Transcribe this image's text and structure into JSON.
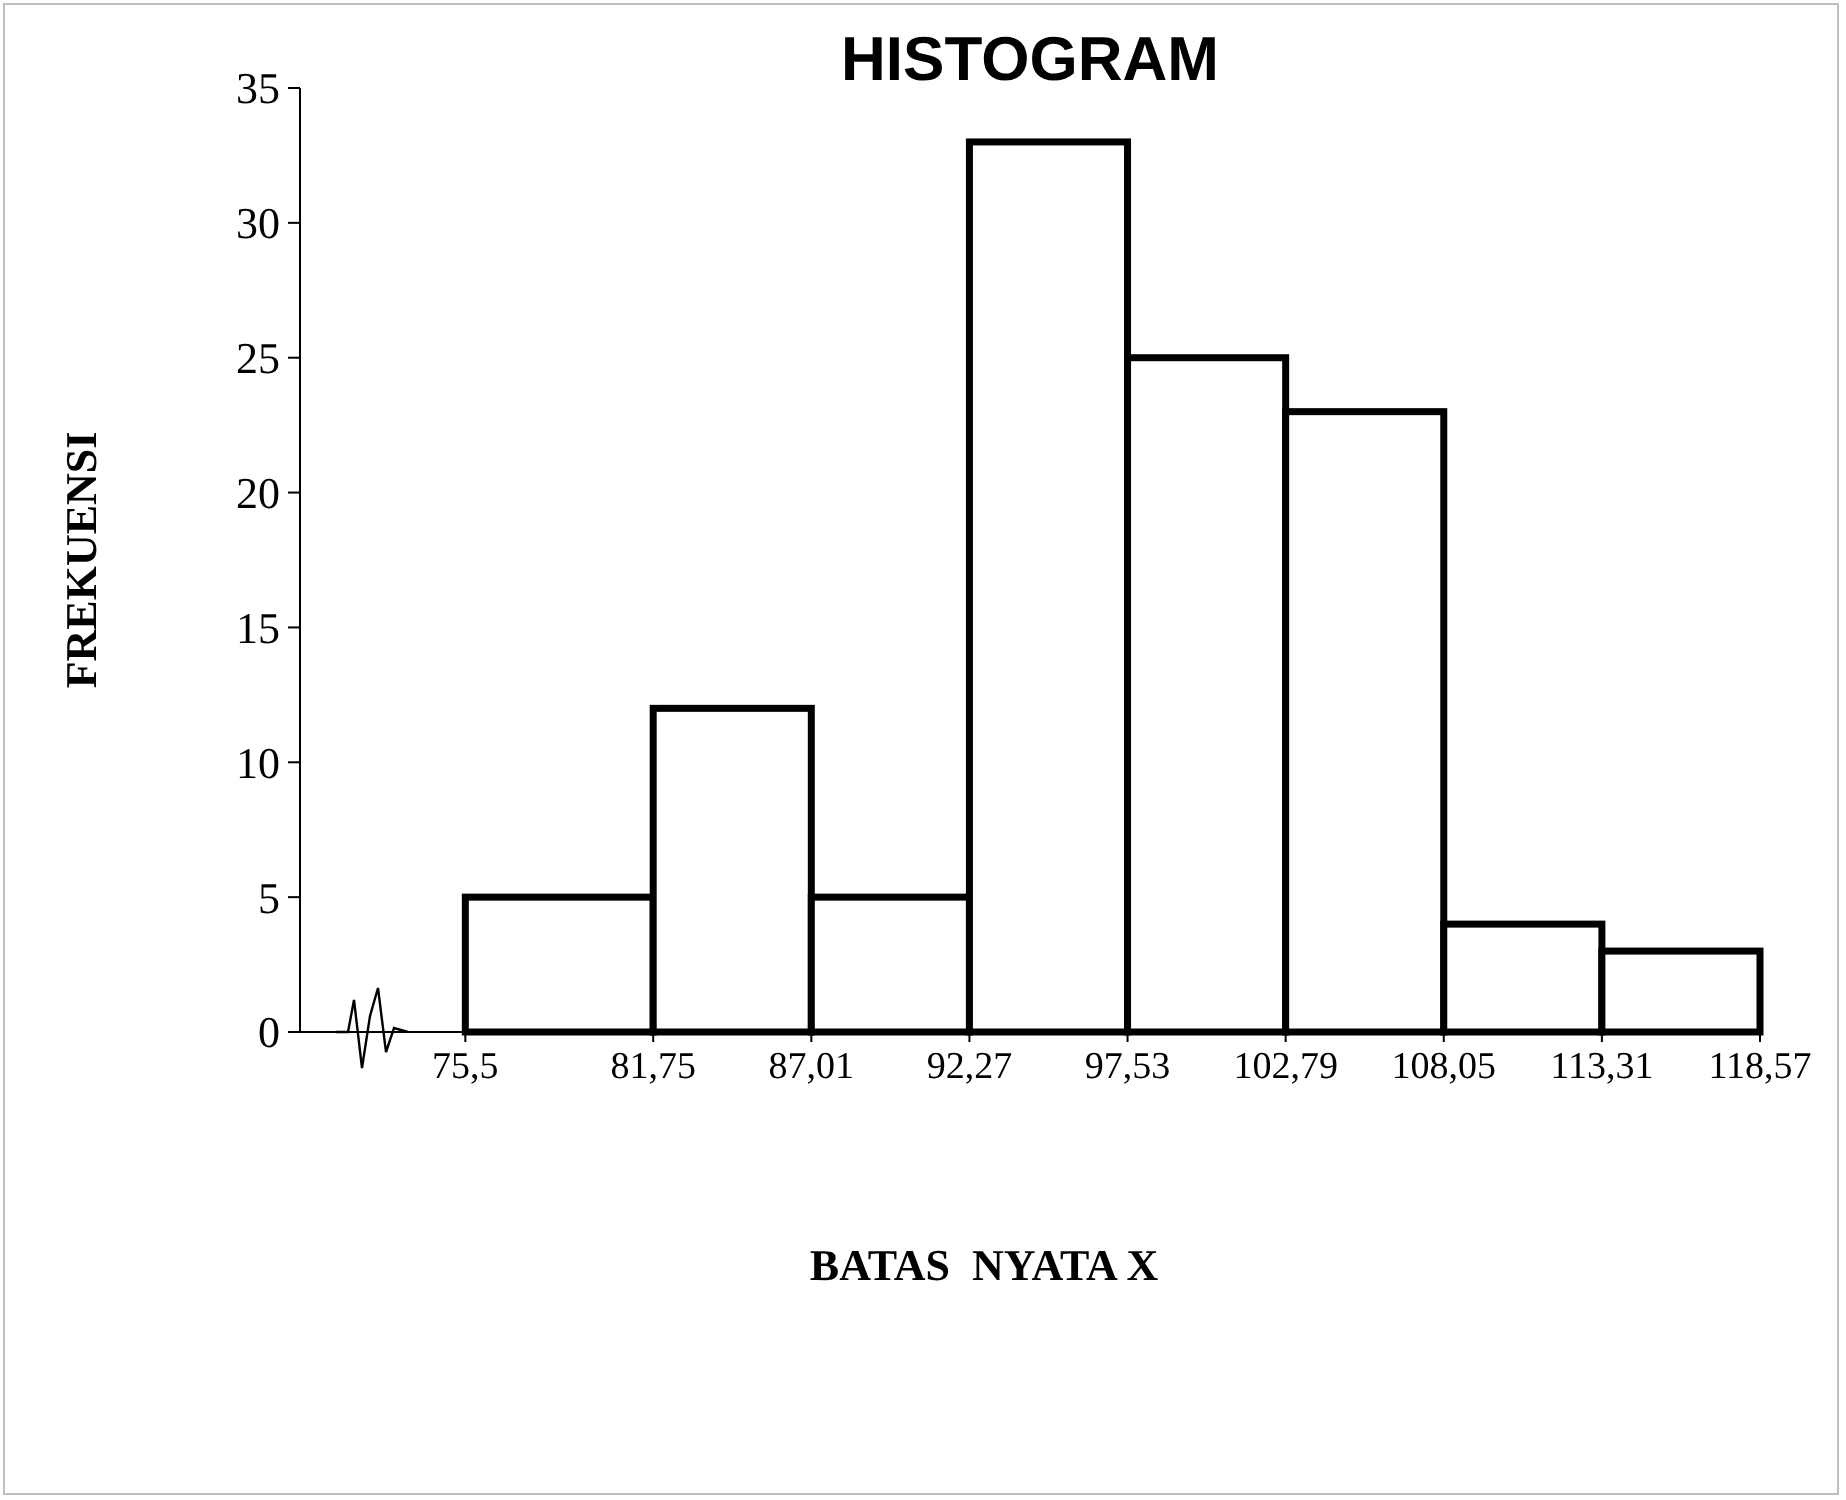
{
  "chart_data": {
    "type": "histogram",
    "title": "HISTOGRAM",
    "xlabel": "BATAS  NYATA X",
    "ylabel": "FREKUENSI",
    "bins": [
      75.5,
      81.75,
      87.01,
      92.27,
      97.53,
      102.79,
      108.05,
      113.31,
      118.57
    ],
    "values": [
      5,
      12,
      5,
      33,
      25,
      23,
      4,
      3
    ],
    "color": "#ffffff",
    "xlim": [
      70,
      118.57
    ],
    "xticks": [
      {
        "value": 75.5,
        "label": "75,5"
      },
      {
        "value": 81.75,
        "label": "81,75"
      },
      {
        "value": 87.01,
        "label": "87,01"
      },
      {
        "value": 92.27,
        "label": "92,27"
      },
      {
        "value": 97.53,
        "label": "97,53"
      },
      {
        "value": 102.79,
        "label": "102,79"
      },
      {
        "value": 108.05,
        "label": "108,05"
      },
      {
        "value": 113.31,
        "label": "113,31"
      },
      {
        "value": 118.57,
        "label": "118,57"
      }
    ],
    "ylim": [
      0,
      35
    ],
    "yticks": [
      0,
      5,
      10,
      15,
      20,
      25,
      30,
      35
    ],
    "grid": false,
    "legend": false
  }
}
